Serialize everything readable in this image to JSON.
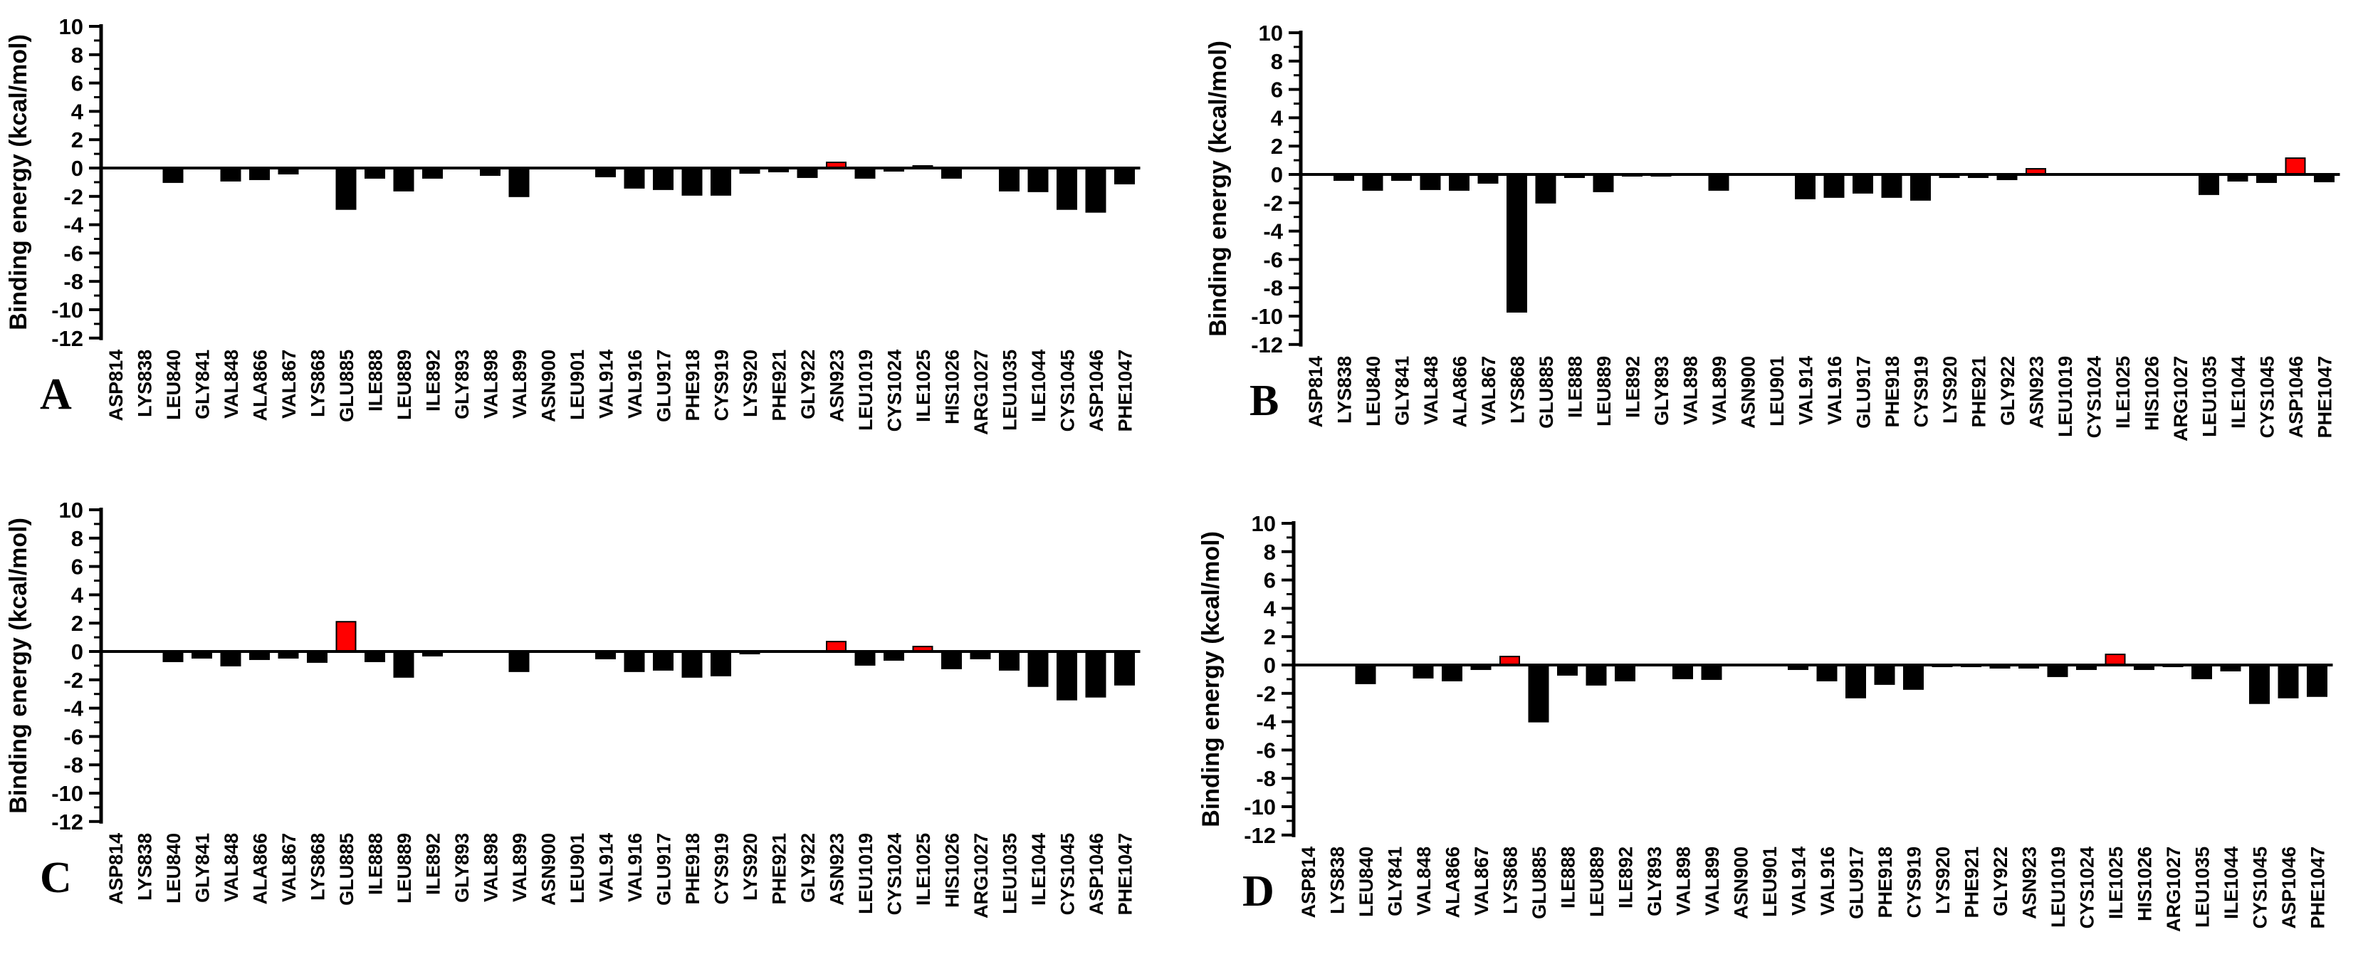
{
  "page": {
    "background": "#ffffff",
    "description": "Per-residue binding energy decomposition bar charts, four panels A-D"
  },
  "colors": {
    "bar_negative": "#000000",
    "bar_positive_highlight": "#ff0000",
    "axis": "#000000",
    "text": "#000000"
  },
  "y_axis": {
    "label": "Binding energy (kcal/mol)",
    "max": 10,
    "min": -12,
    "major_tick_step": 2,
    "minor_tick_step": 1,
    "tick_labels": [
      "10",
      "8",
      "6",
      "4",
      "2",
      "0",
      "-2",
      "-4",
      "-6",
      "-8",
      "-10",
      "-12"
    ]
  },
  "chart_data": [
    {
      "type": "bar",
      "panel_label": "A",
      "title": "",
      "xlabel": "",
      "ylabel": "Binding energy (kcal/mol)",
      "ylim": [
        -12,
        10
      ],
      "grid": false,
      "legend": "none",
      "bar_color": "#000000",
      "positive_bar_color": "#ff0000",
      "categories": [
        "ASP814",
        "LYS838",
        "LEU840",
        "GLY841",
        "VAL848",
        "ALA866",
        "VAL867",
        "LYS868",
        "GLU885",
        "ILE888",
        "LEU889",
        "ILE892",
        "GLY893",
        "VAL898",
        "VAL899",
        "ASN900",
        "LEU901",
        "VAL914",
        "VAL916",
        "GLU917",
        "PHE918",
        "CYS919",
        "LYS920",
        "PHE921",
        "GLY922",
        "ASN923",
        "LEU1019",
        "CYS1024",
        "ILE1025",
        "HIS1026",
        "ARG1027",
        "LEU1035",
        "ILE1044",
        "CYS1045",
        "ASP1046",
        "PHE1047"
      ],
      "values": [
        0,
        0,
        -1.0,
        0,
        -0.9,
        -0.8,
        -0.4,
        0,
        -2.9,
        -0.7,
        -1.6,
        -0.7,
        0,
        -0.5,
        -2.0,
        0,
        0,
        -0.6,
        -1.4,
        -1.5,
        -1.9,
        -1.9,
        -0.35,
        -0.25,
        -0.65,
        0.4,
        -0.7,
        -0.2,
        0.15,
        -0.7,
        0,
        -1.6,
        -1.65,
        -2.9,
        -3.1,
        -1.1
      ],
      "red_highlight_residues": [
        "ASN923",
        "ILE1025"
      ]
    },
    {
      "type": "bar",
      "panel_label": "B",
      "title": "",
      "xlabel": "",
      "ylabel": "Binding energy (kcal/mol)",
      "ylim": [
        -12,
        10
      ],
      "grid": false,
      "legend": "none",
      "bar_color": "#000000",
      "positive_bar_color": "#ff0000",
      "categories": [
        "ASP814",
        "LYS838",
        "LEU840",
        "GLY841",
        "VAL848",
        "ALA866",
        "VAL867",
        "LYS868",
        "GLU885",
        "ILE888",
        "LEU889",
        "ILE892",
        "GLY893",
        "VAL898",
        "VAL899",
        "ASN900",
        "LEU901",
        "VAL914",
        "VAL916",
        "GLU917",
        "PHE918",
        "CYS919",
        "LYS920",
        "PHE921",
        "GLY922",
        "ASN923",
        "LEU1019",
        "CYS1024",
        "ILE1025",
        "HIS1026",
        "ARG1027",
        "LEU1035",
        "ILE1044",
        "CYS1045",
        "ASP1046",
        "PHE1047"
      ],
      "values": [
        0,
        -0.4,
        -1.1,
        -0.4,
        -1.05,
        -1.1,
        -0.6,
        -9.7,
        -2.0,
        -0.2,
        -1.2,
        -0.1,
        -0.1,
        0,
        -1.1,
        0,
        0,
        -1.7,
        -1.6,
        -1.3,
        -1.6,
        -1.8,
        -0.2,
        -0.2,
        -0.35,
        0.4,
        0,
        0,
        0,
        0,
        0,
        -1.4,
        -0.45,
        -0.55,
        1.15,
        -0.5
      ],
      "red_highlight_residues": [
        "ASN923",
        "ASP1046"
      ]
    },
    {
      "type": "bar",
      "panel_label": "C",
      "title": "",
      "xlabel": "",
      "ylabel": "Binding energy (kcal/mol)",
      "ylim": [
        -12,
        10
      ],
      "grid": false,
      "legend": "none",
      "bar_color": "#000000",
      "positive_bar_color": "#ff0000",
      "categories": [
        "ASP814",
        "LYS838",
        "LEU840",
        "GLY841",
        "VAL848",
        "ALA866",
        "VAL867",
        "LYS868",
        "GLU885",
        "ILE888",
        "LEU889",
        "ILE892",
        "GLY893",
        "VAL898",
        "VAL899",
        "ASN900",
        "LEU901",
        "VAL914",
        "VAL916",
        "GLU917",
        "PHE918",
        "CYS919",
        "LYS920",
        "PHE921",
        "GLY922",
        "ASN923",
        "LEU1019",
        "CYS1024",
        "ILE1025",
        "HIS1026",
        "ARG1027",
        "LEU1035",
        "ILE1044",
        "CYS1045",
        "ASP1046",
        "PHE1047"
      ],
      "values": [
        0,
        0,
        -0.7,
        -0.45,
        -1.0,
        -0.55,
        -0.45,
        -0.75,
        2.1,
        -0.7,
        -1.8,
        -0.3,
        0,
        0,
        -1.4,
        0,
        0,
        -0.5,
        -1.4,
        -1.3,
        -1.8,
        -1.7,
        -0.15,
        0,
        0,
        0.7,
        -0.95,
        -0.6,
        0.35,
        -1.2,
        -0.5,
        -1.3,
        -2.45,
        -3.4,
        -3.2,
        -2.35
      ],
      "red_highlight_residues": [
        "GLU885",
        "ASN923",
        "ILE1025"
      ]
    },
    {
      "type": "bar",
      "panel_label": "D",
      "title": "",
      "xlabel": "",
      "ylabel": "Binding energy (kcal/mol)",
      "ylim": [
        -12,
        10
      ],
      "grid": false,
      "legend": "none",
      "bar_color": "#000000",
      "positive_bar_color": "#ff0000",
      "categories": [
        "ASP814",
        "LYS838",
        "LEU840",
        "GLY841",
        "VAL848",
        "ALA866",
        "VAL867",
        "LYS868",
        "GLU885",
        "ILE888",
        "LEU889",
        "ILE892",
        "GLY893",
        "VAL898",
        "VAL899",
        "ASN900",
        "LEU901",
        "VAL914",
        "VAL916",
        "GLU917",
        "PHE918",
        "CYS919",
        "LYS920",
        "PHE921",
        "GLY922",
        "ASN923",
        "LEU1019",
        "CYS1024",
        "ILE1025",
        "HIS1026",
        "ARG1027",
        "LEU1035",
        "ILE1044",
        "CYS1045",
        "ASP1046",
        "PHE1047"
      ],
      "values": [
        0,
        0,
        -1.3,
        0,
        -0.9,
        -1.1,
        -0.3,
        0.6,
        -4.0,
        -0.7,
        -1.4,
        -1.1,
        0,
        -0.95,
        -1.0,
        0,
        0,
        -0.3,
        -1.1,
        -2.3,
        -1.35,
        -1.7,
        -0.1,
        -0.1,
        -0.2,
        -0.2,
        -0.8,
        -0.3,
        0.75,
        -0.3,
        -0.1,
        -0.95,
        -0.4,
        -2.7,
        -2.3,
        -2.2
      ],
      "red_highlight_residues": [
        "LYS868",
        "ILE1025"
      ]
    }
  ]
}
